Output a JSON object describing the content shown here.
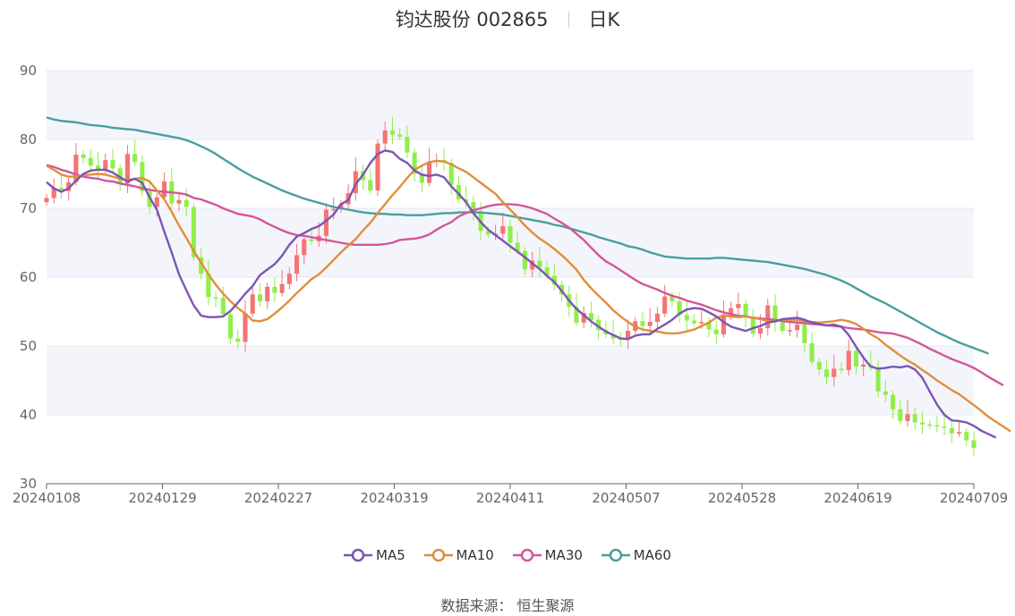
{
  "header": {
    "stock": "钧达股份 002865",
    "period": "日K"
  },
  "footer": {
    "source_label": "数据来源：",
    "source_name": "恒生聚源"
  },
  "colors": {
    "up": "#f47474",
    "down": "#90ee4a",
    "ma5": "#7b56b5",
    "ma10": "#e08e3b",
    "ma30": "#d4569a",
    "ma60": "#4a9e9e",
    "band": "#f4f5fa",
    "grid": "#e6e8f0"
  },
  "chart_data": {
    "type": "candlestick",
    "y_axis": {
      "min": 30,
      "max": 90,
      "ticks": [
        30,
        40,
        50,
        60,
        70,
        80,
        90
      ]
    },
    "x_ticks": [
      "20240108",
      "20240129",
      "20240227",
      "20240319",
      "20240411",
      "20240507",
      "20240528",
      "20240619",
      "20240709"
    ],
    "legend": [
      "MA5",
      "MA10",
      "MA30",
      "MA60"
    ],
    "closes": [
      71.5,
      73.0,
      72.5,
      73.8,
      77.8,
      77.3,
      76.2,
      75.6,
      77.0,
      75.8,
      73.6,
      77.9,
      76.7,
      72.5,
      70.2,
      71.6,
      73.9,
      70.7,
      71.2,
      70.2,
      62.9,
      60.5,
      57.1,
      57.0,
      54.6,
      51.1,
      50.6,
      54.7,
      57.5,
      56.5,
      58.6,
      57.7,
      59.0,
      60.5,
      63.2,
      65.5,
      65.2,
      66.0,
      69.8,
      69.9,
      70.6,
      72.2,
      75.4,
      74.1,
      72.6,
      79.4,
      81.3,
      80.7,
      80.4,
      78.1,
      75.0,
      73.7,
      76.8,
      77.0,
      76.6,
      73.4,
      71.3,
      70.9,
      69.3,
      66.7,
      66.2,
      66.3,
      67.4,
      65.0,
      63.8,
      61.1,
      62.4,
      61.4,
      60.2,
      58.9,
      57.5,
      55.7,
      53.4,
      54.8,
      53.8,
      52.3,
      51.7,
      51.1,
      51.0,
      52.2,
      53.6,
      52.9,
      53.5,
      54.7,
      57.2,
      56.5,
      54.5,
      53.7,
      53.3,
      53.5,
      52.4,
      51.7,
      54.6,
      55.5,
      56.1,
      54.1,
      51.8,
      52.6,
      55.9,
      53.4,
      52.2,
      52.3,
      53.1,
      50.4,
      47.7,
      46.6,
      45.5,
      46.7,
      46.5,
      49.3,
      47.0,
      47.3,
      46.9,
      43.4,
      42.9,
      40.8,
      39.1,
      40.1,
      38.9,
      38.6,
      38.5,
      38.3,
      38.1,
      37.3,
      37.5,
      36.3,
      35.2
    ],
    "ma5": [
      73.8,
      72.9,
      72.4,
      72.9,
      74.0,
      75.0,
      75.5,
      75.6,
      75.6,
      75.2,
      74.5,
      73.9,
      74.3,
      73.7,
      71.6,
      69.8,
      66.6,
      63.6,
      60.4,
      58.1,
      55.9,
      54.4,
      54.2,
      54.2,
      54.3,
      55.1,
      56.3,
      57.6,
      58.7,
      60.3,
      61.1,
      61.9,
      63.1,
      64.7,
      65.9,
      66.4,
      67.0,
      67.4,
      68.2,
      69.1,
      70.6,
      71.2,
      73.5,
      74.9,
      76.6,
      77.9,
      78.4,
      78.2,
      77.2,
      76.6,
      75.5,
      74.9,
      74.7,
      74.9,
      74.5,
      73.2,
      72.1,
      70.9,
      69.3,
      68.0,
      66.9,
      66.1,
      65.3,
      64.5,
      63.7,
      62.9,
      62.0,
      61.2,
      60.2,
      59.3,
      58.0,
      56.6,
      55.4,
      54.5,
      53.6,
      52.8,
      52.1,
      51.6,
      51.1,
      51.0,
      51.5,
      51.7,
      51.7,
      52.5,
      53.1,
      53.8,
      54.7,
      55.3,
      55.5,
      55.4,
      54.9,
      54.3,
      53.5,
      52.8,
      52.5,
      52.2,
      52.6,
      52.9,
      53.4,
      53.6,
      53.9,
      54.0,
      54.1,
      53.8,
      53.4,
      53.2,
      53.0,
      53.1,
      52.8,
      51.6,
      49.9,
      48.3,
      47.0,
      46.7,
      46.8,
      47.0,
      46.9,
      47.1,
      46.6,
      45.4,
      43.4,
      41.5,
      40.0,
      39.2,
      39.1,
      38.9,
      38.4,
      37.7,
      37.2,
      36.7
    ],
    "ma10": [
      76.2,
      75.6,
      74.9,
      74.6,
      74.6,
      74.8,
      74.9,
      75.0,
      74.9,
      74.6,
      74.3,
      74.1,
      74.3,
      74.4,
      73.9,
      72.6,
      71.3,
      69.5,
      67.5,
      65.7,
      63.8,
      62.1,
      60.4,
      58.9,
      57.6,
      56.5,
      55.5,
      54.7,
      53.7,
      53.6,
      53.9,
      54.7,
      55.6,
      56.6,
      57.7,
      58.7,
      59.7,
      60.4,
      61.4,
      62.5,
      63.6,
      64.6,
      65.5,
      66.8,
      67.9,
      69.3,
      70.6,
      71.9,
      73.1,
      74.4,
      75.6,
      76.2,
      76.7,
      76.9,
      76.8,
      76.4,
      75.8,
      75.3,
      74.5,
      73.7,
      72.9,
      72.1,
      70.9,
      69.8,
      68.7,
      67.5,
      66.5,
      65.6,
      64.9,
      64.1,
      63.2,
      62.2,
      61.1,
      59.6,
      58.4,
      57.3,
      56.3,
      55.2,
      54.3,
      53.5,
      52.8,
      52.4,
      52.2,
      52.1,
      51.9,
      51.8,
      51.9,
      52.1,
      52.4,
      52.9,
      53.4,
      54.1,
      54.4,
      54.3,
      54.2,
      54.3,
      54.1,
      53.9,
      53.6,
      53.7,
      53.8,
      53.8,
      53.8,
      53.6,
      53.5,
      53.4,
      53.5,
      53.6,
      53.8,
      53.6,
      53.2,
      52.5,
      51.7,
      51.1,
      50.2,
      49.4,
      48.6,
      47.9,
      47.3,
      46.5,
      45.8,
      45.0,
      44.3,
      43.6,
      43.0,
      42.2,
      41.4,
      40.6,
      39.7,
      39.0,
      38.3,
      37.6
    ],
    "ma30": [
      76.3,
      76.0,
      75.6,
      75.3,
      74.9,
      74.6,
      74.4,
      74.3,
      74.0,
      73.9,
      73.6,
      73.4,
      73.2,
      72.9,
      72.7,
      72.5,
      72.4,
      72.3,
      72.2,
      72.0,
      71.5,
      71.3,
      70.9,
      70.5,
      70.0,
      69.6,
      69.2,
      69.0,
      68.8,
      68.4,
      67.8,
      67.3,
      66.8,
      66.4,
      66.1,
      66.0,
      65.8,
      65.6,
      65.4,
      65.2,
      65.0,
      64.8,
      64.7,
      64.7,
      64.7,
      64.7,
      64.8,
      65.0,
      65.4,
      65.5,
      65.6,
      65.8,
      66.2,
      66.9,
      67.5,
      68.0,
      68.8,
      69.3,
      69.7,
      70.0,
      70.3,
      70.5,
      70.6,
      70.6,
      70.5,
      70.3,
      70.0,
      69.6,
      69.2,
      68.5,
      67.9,
      67.2,
      66.3,
      65.4,
      64.3,
      63.2,
      62.3,
      61.7,
      61.0,
      60.3,
      59.6,
      59.0,
      58.6,
      58.2,
      57.7,
      57.3,
      57.0,
      56.6,
      56.3,
      56.0,
      55.6,
      55.2,
      54.9,
      54.6,
      54.4,
      54.3,
      54.1,
      54.0,
      53.9,
      53.8,
      53.6,
      53.5,
      53.4,
      53.3,
      53.2,
      53.1,
      53.0,
      52.9,
      52.8,
      52.6,
      52.5,
      52.4,
      52.2,
      52.0,
      51.9,
      51.8,
      51.5,
      51.2,
      50.7,
      50.2,
      49.6,
      49.1,
      48.6,
      48.1,
      47.7,
      47.3,
      46.8,
      46.2,
      45.5,
      44.9,
      44.3
    ],
    "ma60": [
      83.2,
      82.9,
      82.7,
      82.6,
      82.5,
      82.3,
      82.1,
      82.0,
      81.9,
      81.7,
      81.6,
      81.5,
      81.4,
      81.2,
      81.0,
      80.8,
      80.6,
      80.4,
      80.2,
      79.9,
      79.5,
      79.0,
      78.5,
      77.9,
      77.2,
      76.5,
      75.8,
      75.2,
      74.6,
      74.1,
      73.6,
      73.1,
      72.6,
      72.2,
      71.8,
      71.4,
      71.1,
      70.8,
      70.5,
      70.2,
      70.0,
      69.8,
      69.6,
      69.4,
      69.3,
      69.2,
      69.2,
      69.1,
      69.1,
      69.0,
      69.0,
      69.0,
      69.1,
      69.2,
      69.3,
      69.3,
      69.4,
      69.4,
      69.4,
      69.4,
      69.3,
      69.2,
      69.1,
      68.9,
      68.7,
      68.5,
      68.3,
      68.1,
      67.9,
      67.6,
      67.4,
      67.1,
      66.8,
      66.5,
      66.2,
      65.8,
      65.5,
      65.2,
      64.9,
      64.5,
      64.3,
      64.0,
      63.6,
      63.3,
      63.0,
      62.9,
      62.8,
      62.7,
      62.7,
      62.7,
      62.7,
      62.8,
      62.8,
      62.7,
      62.6,
      62.5,
      62.4,
      62.3,
      62.2,
      62.0,
      61.8,
      61.6,
      61.4,
      61.2,
      60.9,
      60.6,
      60.3,
      59.9,
      59.5,
      59.0,
      58.4,
      57.8,
      57.2,
      56.7,
      56.2,
      55.6,
      55.0,
      54.4,
      53.8,
      53.2,
      52.6,
      52.0,
      51.5,
      51.0,
      50.5,
      50.1,
      49.7,
      49.3,
      48.9
    ]
  }
}
